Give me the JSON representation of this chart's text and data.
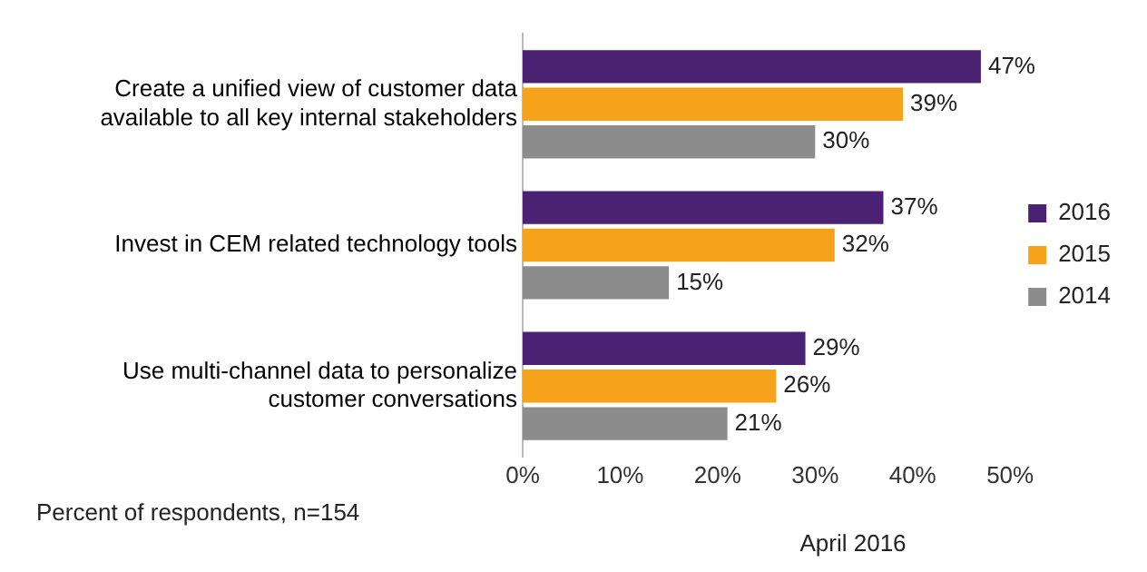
{
  "chart_data": {
    "type": "bar",
    "orientation": "horizontal",
    "categories": [
      "Create a unified view of customer data available to all key internal stakeholders",
      "Invest in CEM related technology tools",
      "Use multi-channel data to personalize customer conversations"
    ],
    "series": [
      {
        "name": "2016",
        "color": "#4b2173",
        "values": [
          47,
          37,
          29
        ],
        "value_labels": [
          "47%",
          "37%",
          "29%"
        ]
      },
      {
        "name": "2015",
        "color": "#f7a21b",
        "values": [
          39,
          32,
          26
        ],
        "value_labels": [
          "39%",
          "32%",
          "26%"
        ]
      },
      {
        "name": "2014",
        "color": "#8c8c8c",
        "values": [
          30,
          15,
          21
        ],
        "value_labels": [
          "30%",
          "15%",
          "21%"
        ]
      }
    ],
    "xlim": [
      0,
      50
    ],
    "xticks": [
      {
        "value": 0,
        "label": "0%"
      },
      {
        "value": 10,
        "label": "10%"
      },
      {
        "value": 20,
        "label": "20%"
      },
      {
        "value": 30,
        "label": "30%"
      },
      {
        "value": 40,
        "label": "40%"
      },
      {
        "value": 50,
        "label": "50%"
      }
    ],
    "grid": false,
    "legend": "right",
    "annotations": [
      "Percent of respondents, n=154",
      "April 2016"
    ]
  }
}
